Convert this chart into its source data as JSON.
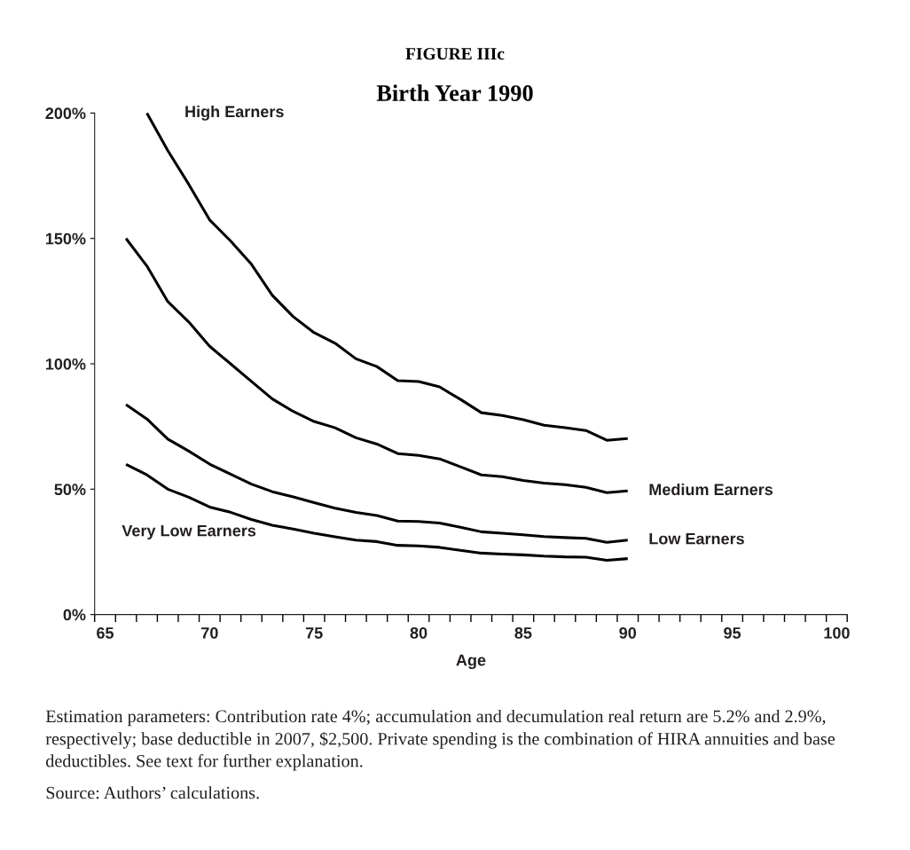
{
  "chart_data": {
    "type": "line",
    "title": "FIGURE IIIc",
    "subtitle": "Birth Year 1990",
    "xlabel": "Age",
    "x": [
      66,
      67,
      68,
      69,
      70,
      71,
      72,
      73,
      74,
      75,
      76,
      77,
      78,
      79,
      80,
      81,
      82,
      83,
      84,
      85,
      86,
      87,
      88,
      89,
      90
    ],
    "series": [
      {
        "name": "High Earners",
        "color": "#000000",
        "values": [
          null,
          200,
          185,
          171.6,
          157.4,
          149,
          139.7,
          127.3,
          118.8,
          112.4,
          108.2,
          102,
          98.9,
          93.3,
          92.9,
          90.8,
          85.8,
          80.5,
          79.4,
          77.7,
          75.5,
          74.5,
          73.4,
          69.5,
          70.2
        ]
      },
      {
        "name": "Medium Earners",
        "color": "#000000",
        "values": [
          150,
          139,
          124.8,
          116.7,
          107,
          100,
          93,
          86,
          81,
          77,
          74.5,
          70.5,
          68,
          64.2,
          63.5,
          62.1,
          58.9,
          55.7,
          55,
          53.5,
          52.4,
          51.8,
          50.7,
          48.6,
          49.3
        ]
      },
      {
        "name": "Low Earners",
        "color": "#000000",
        "values": [
          83.7,
          78,
          70,
          65.2,
          60,
          56,
          52,
          49,
          46.9,
          44.6,
          42.4,
          40.7,
          39.5,
          37.3,
          37.1,
          36.5,
          34.8,
          33,
          32.4,
          31.8,
          31.1,
          30.7,
          30.4,
          28.8,
          29.7
        ]
      },
      {
        "name": "Very Low Earners",
        "color": "#000000",
        "values": [
          59.9,
          55.7,
          50,
          46.8,
          42.9,
          40.8,
          37.9,
          35.6,
          34.1,
          32.4,
          31,
          29.7,
          29.1,
          27.6,
          27.4,
          26.8,
          25.6,
          24.5,
          24.1,
          23.8,
          23.3,
          23,
          22.9,
          21.6,
          22.3
        ]
      }
    ],
    "xlim": [
      64.5,
      100.5
    ],
    "xticks": [
      65,
      70,
      75,
      80,
      85,
      90,
      95,
      100,
      {
        "value": 64.5,
        "label": null
      },
      {
        "value": 65.5,
        "label": null
      },
      {
        "value": 66.5,
        "label": null
      },
      {
        "value": 67.5,
        "label": null
      },
      {
        "value": 68.5,
        "label": null
      },
      {
        "value": 69.5,
        "label": null
      },
      {
        "value": 70.5,
        "label": null
      },
      {
        "value": 71.5,
        "label": null
      },
      {
        "value": 72.5,
        "label": null
      },
      {
        "value": 73.5,
        "label": null
      },
      {
        "value": 74.5,
        "label": null
      },
      {
        "value": 75.5,
        "label": null
      },
      {
        "value": 76.5,
        "label": null
      },
      {
        "value": 77.5,
        "label": null
      },
      {
        "value": 78.5,
        "label": null
      },
      {
        "value": 79.5,
        "label": null
      },
      {
        "value": 80.5,
        "label": null
      },
      {
        "value": 81.5,
        "label": null
      },
      {
        "value": 82.5,
        "label": null
      },
      {
        "value": 83.5,
        "label": null
      },
      {
        "value": 84.5,
        "label": null
      },
      {
        "value": 85.5,
        "label": null
      },
      {
        "value": 86.5,
        "label": null
      },
      {
        "value": 87.5,
        "label": null
      },
      {
        "value": 88.5,
        "label": null
      },
      {
        "value": 89.5,
        "label": null
      },
      {
        "value": 90.5,
        "label": null
      },
      {
        "value": 91.5,
        "label": null
      },
      {
        "value": 92.5,
        "label": null
      },
      {
        "value": 93.5,
        "label": null
      },
      {
        "value": 94.5,
        "label": null
      },
      {
        "value": 95.5,
        "label": null
      },
      {
        "value": 96.5,
        "label": null
      },
      {
        "value": 97.5,
        "label": null
      },
      {
        "value": 98.5,
        "label": null
      },
      {
        "value": 99.5,
        "label": null
      },
      {
        "value": 100.5,
        "label": null
      }
    ],
    "ylim": [
      0,
      200
    ],
    "yticks": [
      {
        "value": 0,
        "label": "0%"
      },
      {
        "value": 50,
        "label": "50%"
      },
      {
        "value": 100,
        "label": "100%"
      },
      {
        "value": 150,
        "label": "150%"
      },
      {
        "value": 200,
        "label": "200%"
      }
    ],
    "grid": false,
    "legend": false,
    "marker": "none",
    "line_style": "solid",
    "annotations": [
      "Estimation parameters: Contribution rate 4%; accumulation and decumulation real return are 5.2% and 2.9%, respectively; base deductible in 2007, $2,500. Private spending is the combination of HIRA annuities and base deductibles. See text for further explanation.",
      "Source: Authors’ calculations."
    ]
  }
}
